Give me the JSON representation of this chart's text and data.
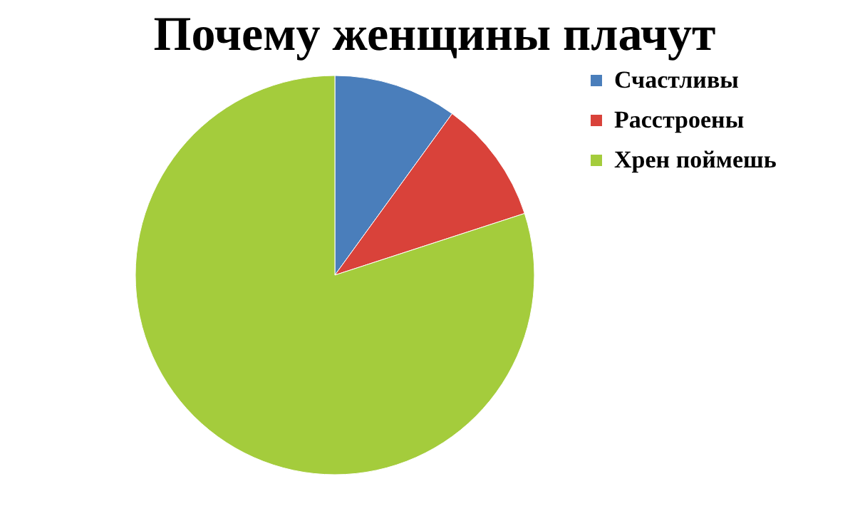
{
  "chart_data": {
    "type": "pie",
    "title": "Почему женщины плачут",
    "categories": [
      "Счастливы",
      "Расстроены",
      "Хрен поймешь"
    ],
    "values": [
      10,
      10,
      80
    ],
    "colors": [
      "#4a7ebb",
      "#d9423a",
      "#a4cc3c"
    ],
    "legend": "right"
  }
}
